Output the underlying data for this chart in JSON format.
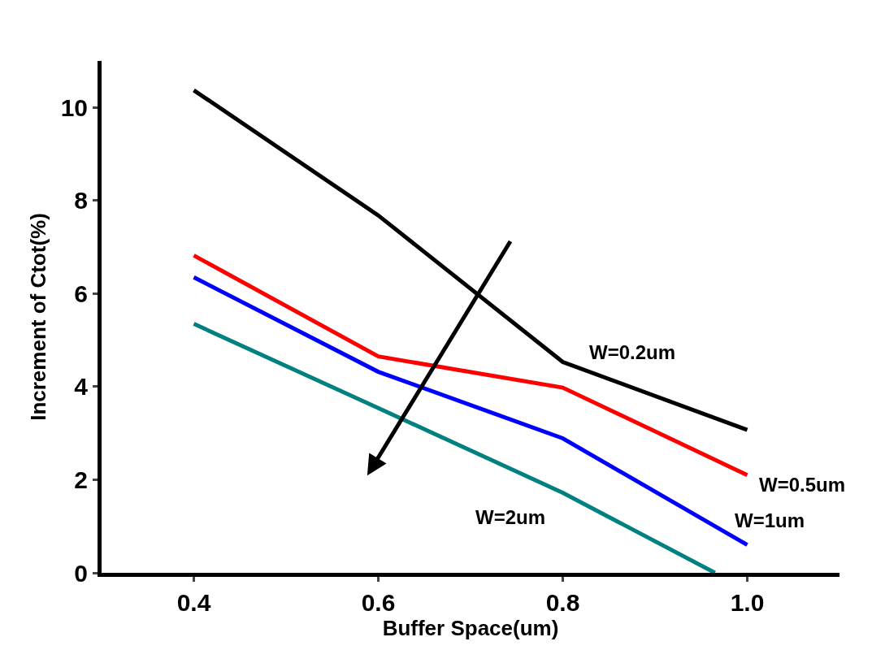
{
  "chart_data": {
    "type": "line",
    "xlabel": "Buffer Space(um)",
    "ylabel": "Increment of Ctot(%)",
    "x": [
      0.4,
      0.6,
      0.8,
      1.0
    ],
    "series": [
      {
        "name": "W=0.2um",
        "color": "#000000",
        "values": [
          10.37,
          7.68,
          4.53,
          3.07
        ]
      },
      {
        "name": "W=0.5um",
        "color": "#ff0000",
        "values": [
          6.82,
          4.65,
          3.98,
          2.1
        ]
      },
      {
        "name": "W=1um",
        "color": "#0000ff",
        "values": [
          6.35,
          4.32,
          2.89,
          0.6
        ]
      },
      {
        "name": "W=2um",
        "color": "#008080",
        "x": [
          0.4,
          0.6,
          0.8,
          0.965
        ],
        "values": [
          5.35,
          3.54,
          1.72,
          0
        ]
      }
    ],
    "xlim": [
      0.3,
      1.1
    ],
    "xticks": [
      {
        "value": 0.4,
        "label": "0.4"
      },
      {
        "value": 0.6,
        "label": "0.6"
      },
      {
        "value": 0.8,
        "label": "0.8"
      },
      {
        "value": 1.0,
        "label": "1.0"
      }
    ],
    "ylim": [
      0,
      11
    ],
    "yticks": [
      0,
      2,
      4,
      6,
      8,
      10
    ],
    "legend": false,
    "marker": "none",
    "line_style": "solid"
  }
}
